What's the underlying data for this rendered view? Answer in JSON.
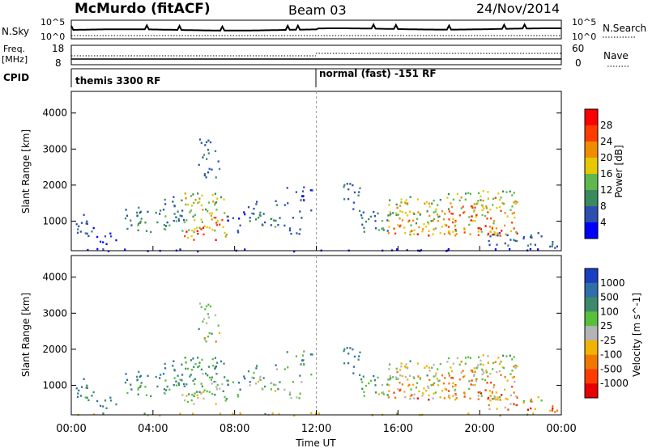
{
  "header": {
    "title": "McMurdo (fitACF)",
    "beam": "Beam 03",
    "date": "24/Nov/2014"
  },
  "top_panels": {
    "nsky_label": "N.Sky",
    "nsky_ticks": [
      "10^5",
      "10^0"
    ],
    "nsearch_label": "N.Search",
    "nsearch_ticks": [
      "10^5",
      "10^0"
    ],
    "freq_label_1": "Freq.",
    "freq_label_2": "[MHz]",
    "freq_ticks": [
      "18",
      "8"
    ],
    "nave_label": "Nave",
    "nave_ticks": [
      "60",
      "0"
    ],
    "cpid_label": "CPID",
    "cpid_segments": [
      "themis 3300 RF",
      "normal (fast) -151 RF"
    ]
  },
  "chart_data": [
    {
      "type": "heatmap",
      "name": "power",
      "ylabel": "Slant Range [km]",
      "xlim_hours": [
        0,
        24
      ],
      "ylim_km": [
        180,
        4600
      ],
      "yticks": [
        "1000",
        "2000",
        "3000",
        "4000"
      ],
      "colorbar_label": "Power [dB]",
      "colorbar_ticks": [
        "4",
        "8",
        "12",
        "16",
        "20",
        "24",
        "28"
      ],
      "colors": [
        "#0000ff",
        "#2d4fb0",
        "#3a8a5e",
        "#5fb84d",
        "#e6c800",
        "#f08c00",
        "#ff3b00",
        "#ff0000"
      ]
    },
    {
      "type": "heatmap",
      "name": "velocity",
      "ylabel": "Slant Range [km]",
      "xlabel": "Time UT",
      "xlim_hours": [
        0,
        24
      ],
      "ylim_km": [
        180,
        4600
      ],
      "yticks": [
        "1000",
        "2000",
        "3000",
        "4000"
      ],
      "xticks": [
        "00:00",
        "04:00",
        "08:00",
        "12:00",
        "16:00",
        "20:00",
        "00:00"
      ],
      "colorbar_label": "Velocity [m s^-1]",
      "colorbar_ticks": [
        "1000",
        "500",
        "100",
        "25",
        "-25",
        "-100",
        "-500",
        "-1000"
      ],
      "colors": [
        "#1a3fbf",
        "#2f6fa8",
        "#3d8a6a",
        "#58c03a",
        "#b4b4b4",
        "#f0b400",
        "#f07800",
        "#ff3c00",
        "#e60000"
      ]
    }
  ]
}
